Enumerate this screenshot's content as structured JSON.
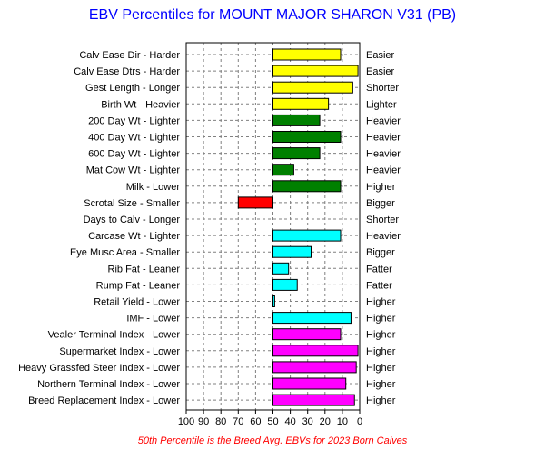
{
  "chart_data": {
    "type": "bar",
    "orientation": "horizontal",
    "title": "EBV Percentiles for MOUNT MAJOR SHARON V31 (PB)",
    "footnote": "50th Percentile is the Breed Avg. EBVs for 2023 Born Calves",
    "x_axis": {
      "ticks": [
        "100",
        "90",
        "80",
        "70",
        "60",
        "50",
        "40",
        "30",
        "20",
        "10",
        "0"
      ],
      "range": [
        100,
        0
      ],
      "reversed": true,
      "baseline": 50
    },
    "grid": true,
    "rows": [
      {
        "left": "Calv Ease Dir - Harder",
        "right": "Easier",
        "percentile": 11,
        "color": "#ffff00"
      },
      {
        "left": "Calv Ease Dtrs - Harder",
        "right": "Easier",
        "percentile": 1,
        "color": "#ffff00"
      },
      {
        "left": "Gest Length - Longer",
        "right": "Shorter",
        "percentile": 4,
        "color": "#ffff00"
      },
      {
        "left": "Birth Wt - Heavier",
        "right": "Lighter",
        "percentile": 18,
        "color": "#ffff00"
      },
      {
        "left": "200 Day Wt - Lighter",
        "right": "Heavier",
        "percentile": 23,
        "color": "#008000"
      },
      {
        "left": "400 Day Wt - Lighter",
        "right": "Heavier",
        "percentile": 11,
        "color": "#008000"
      },
      {
        "left": "600 Day Wt - Lighter",
        "right": "Heavier",
        "percentile": 23,
        "color": "#008000"
      },
      {
        "left": "Mat Cow Wt - Lighter",
        "right": "Heavier",
        "percentile": 38,
        "color": "#008000"
      },
      {
        "left": "Milk - Lower",
        "right": "Higher",
        "percentile": 11,
        "color": "#008000"
      },
      {
        "left": "Scrotal Size - Smaller",
        "right": "Bigger",
        "percentile": 70,
        "color": "#ff0000"
      },
      {
        "left": "Days to Calv - Longer",
        "right": "Shorter",
        "percentile": null,
        "color": "#ffffff"
      },
      {
        "left": "Carcase Wt - Lighter",
        "right": "Heavier",
        "percentile": 11,
        "color": "#00ffff"
      },
      {
        "left": "Eye Musc Area - Smaller",
        "right": "Bigger",
        "percentile": 28,
        "color": "#00ffff"
      },
      {
        "left": "Rib Fat - Leaner",
        "right": "Fatter",
        "percentile": 41,
        "color": "#00ffff"
      },
      {
        "left": "Rump Fat - Leaner",
        "right": "Fatter",
        "percentile": 36,
        "color": "#00ffff"
      },
      {
        "left": "Retail Yield - Lower",
        "right": "Higher",
        "percentile": 49,
        "color": "#00ffff"
      },
      {
        "left": "IMF - Lower",
        "right": "Higher",
        "percentile": 5,
        "color": "#00ffff"
      },
      {
        "left": "Vealer Terminal Index - Lower",
        "right": "Higher",
        "percentile": 11,
        "color": "#ff00ff"
      },
      {
        "left": "Supermarket Index - Lower",
        "right": "Higher",
        "percentile": 1,
        "color": "#ff00ff"
      },
      {
        "left": "Heavy Grassfed Steer Index - Lower",
        "right": "Higher",
        "percentile": 2,
        "color": "#ff00ff"
      },
      {
        "left": "Northern Terminal Index - Lower",
        "right": "Higher",
        "percentile": 8,
        "color": "#ff00ff"
      },
      {
        "left": "Breed Replacement Index - Lower",
        "right": "Higher",
        "percentile": 3,
        "color": "#ff00ff"
      }
    ]
  }
}
